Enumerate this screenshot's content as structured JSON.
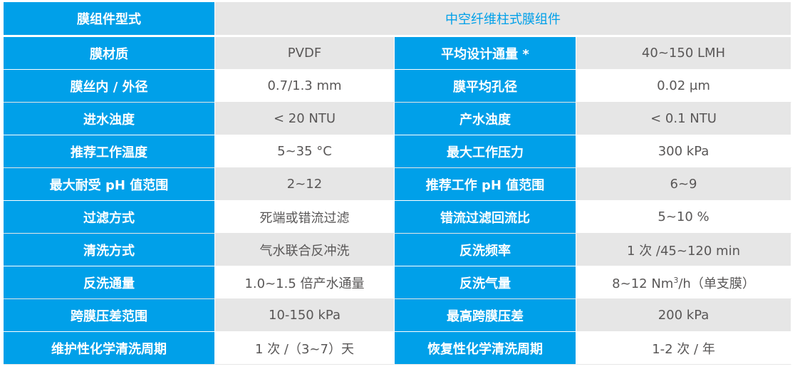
{
  "header": {
    "label": "膜组件型式",
    "value": "中空纤维柱式膜组件"
  },
  "rows": [
    {
      "k1": "膜材质",
      "v1": "PVDF",
      "k2": "平均设计通量 *",
      "v2": "40~150 LMH"
    },
    {
      "k1": "膜丝内 / 外径",
      "v1": "0.7/1.3 mm",
      "k2": "膜平均孔径",
      "v2": "0.02 μm"
    },
    {
      "k1": "进水浊度",
      "v1": "< 20 NTU",
      "k2": "产水浊度",
      "v2": "< 0.1 NTU"
    },
    {
      "k1": "推荐工作温度",
      "v1": "5~35 °C",
      "k2": "最大工作压力",
      "v2": "300 kPa"
    },
    {
      "k1": "最大耐受 pH 值范围",
      "v1": "2~12",
      "k2": "推荐工作 pH 值范围",
      "v2": "6~9"
    },
    {
      "k1": "过滤方式",
      "v1": "死端或错流过滤",
      "k2": "错流过滤回流比",
      "v2": "5~10 %"
    },
    {
      "k1": "清洗方式",
      "v1": "气水联合反冲洗",
      "k2": "反洗频率",
      "v2": "1 次 /45~120 min"
    },
    {
      "k1": "反洗通量",
      "v1": "1.0~1.5 倍产水通量",
      "k2": "反洗气量",
      "v2a": "8~12 Nm",
      "v2sup": "3",
      "v2b": "/h（单支膜）"
    },
    {
      "k1": "跨膜压差范围",
      "v1": "10-150 kPa",
      "k2": "最高跨膜压差",
      "v2": "200 kPa"
    },
    {
      "k1": "维护性化学清洗周期",
      "v1": "1 次 /（3~7）天",
      "k2": "恢复性化学清洗周期",
      "v2": "1-2 次 / 年"
    }
  ],
  "colors": {
    "accent": "#00a0e9",
    "stripe": "#e6e6e6",
    "text": "#595757"
  }
}
